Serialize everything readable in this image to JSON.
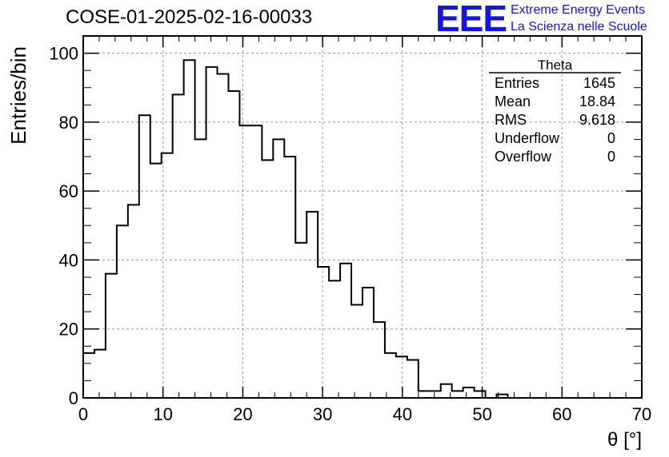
{
  "page": {
    "title": "COSE-01-2025-02-16-00033",
    "logo": {
      "text": "EEE",
      "line1": "Extreme Energy Events",
      "line2": "La Scienza nelle Scuole",
      "color": "#1515e6"
    }
  },
  "chart_data": {
    "type": "bar",
    "histogram": true,
    "xlabel": "θ [°]",
    "ylabel": "Entries/bin",
    "xlim": [
      0,
      70
    ],
    "ylim": [
      0,
      105
    ],
    "bin_width": 1.4,
    "x_ticks": [
      "0",
      "10",
      "20",
      "30",
      "40",
      "50",
      "60",
      "70"
    ],
    "y_ticks": [
      "0",
      "20",
      "40",
      "60",
      "80",
      "100"
    ],
    "grid": true,
    "values": [
      13,
      14,
      36,
      50,
      56,
      82,
      68,
      71,
      88,
      98,
      75,
      96,
      94,
      89,
      79,
      79,
      69,
      75,
      70,
      45,
      54,
      38,
      34,
      39,
      27,
      32,
      22,
      13,
      12,
      11,
      2,
      2,
      4,
      2,
      3,
      2,
      0,
      1,
      0,
      0,
      0,
      0,
      0,
      0,
      0,
      0,
      0,
      0,
      0,
      0
    ],
    "stats": {
      "title": "Theta",
      "rows": [
        {
          "label": "Entries",
          "value": "1645"
        },
        {
          "label": "Mean",
          "value": "18.84"
        },
        {
          "label": "RMS",
          "value": "9.618"
        },
        {
          "label": "Underflow",
          "value": "0"
        },
        {
          "label": "Overflow",
          "value": "0"
        }
      ]
    }
  }
}
